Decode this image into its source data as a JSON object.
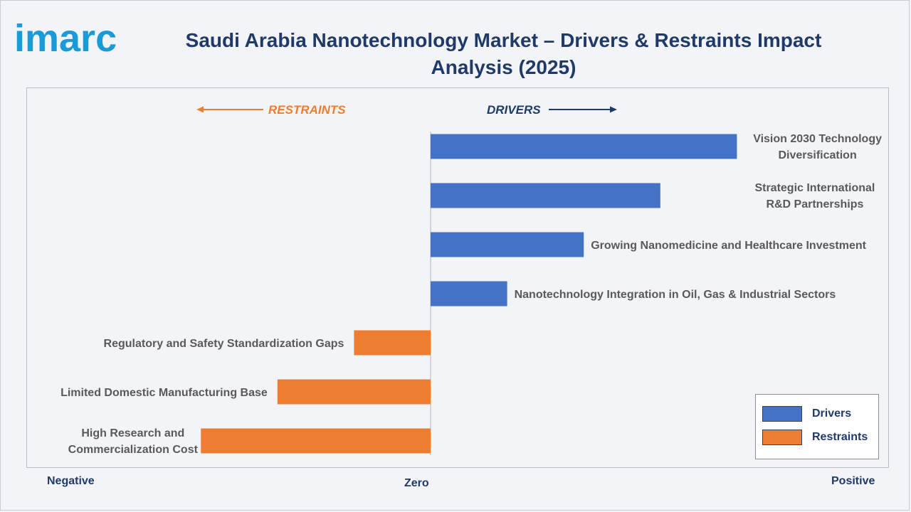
{
  "brand": {
    "logo_text": "imarc"
  },
  "title": "Saudi Arabia Nanotechnology Market – Drivers & Restraints Impact Analysis (2025)",
  "colors": {
    "drivers": "#4472c4",
    "restraints": "#ed7d31",
    "title": "#1f3a68",
    "label": "#595959",
    "logo": "#1a9ad6"
  },
  "footer": {
    "negative": "Negative",
    "zero": "Zero",
    "positive": "Positive"
  },
  "legend": {
    "drivers_label": "Drivers",
    "restraints_label": "Restraints"
  },
  "chart_data": {
    "type": "bar",
    "orientation": "horizontal",
    "direction_labels": {
      "left": "RESTRAINTS",
      "right": "DRIVERS"
    },
    "categories": [
      "Vision 2030 Technology Diversification",
      "Strategic International R&D Partnerships",
      "Growing Nanomedicine and Healthcare Investment",
      "Nanotechnology Integration in Oil, Gas & Industrial Sectors",
      "Regulatory and Safety Standardization Gaps",
      "Limited Domestic Manufacturing Base",
      "High Research and Commercialization Cost"
    ],
    "series": [
      {
        "name": "Drivers",
        "values": [
          4.0,
          3.0,
          2.0,
          1.0,
          null,
          null,
          null
        ]
      },
      {
        "name": "Restraints",
        "values": [
          null,
          null,
          null,
          null,
          -1.0,
          -2.0,
          -3.0
        ]
      }
    ],
    "xlim": [
      -5.3,
      5.9
    ],
    "legend_position": "bottom-right",
    "grid": false
  }
}
